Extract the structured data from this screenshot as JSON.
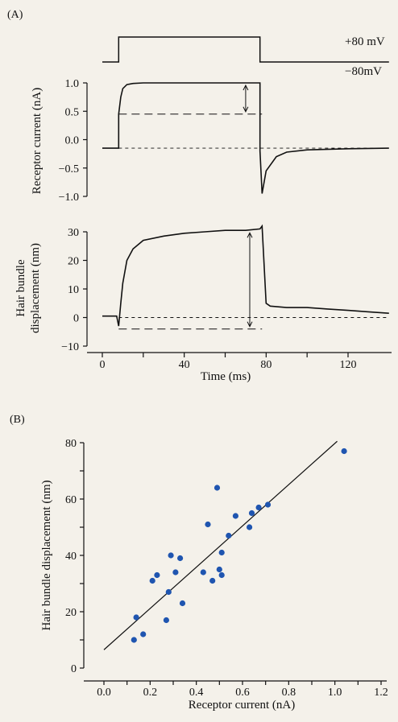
{
  "panel_a_label": "(A)",
  "panel_b_label": "(B)",
  "chart_data": [
    {
      "type": "line",
      "panel": "A-voltage",
      "series": [
        {
          "values_ms": [
            0,
            8,
            8,
            77,
            77,
            140
          ],
          "values_mV": [
            -80,
            -80,
            80,
            80,
            -80,
            -80
          ]
        }
      ],
      "annotations": [
        "+80 mV",
        "−80mV"
      ]
    },
    {
      "type": "line",
      "panel": "A-current",
      "ylabel": "Receptor current (nA)",
      "yticks": [
        "1.0",
        "0.5",
        "0.0",
        "−0.5",
        "−1.0"
      ],
      "ytick_values": [
        1.0,
        0.5,
        0.0,
        -0.5,
        -1.0
      ],
      "ylim": [
        -1.1,
        1.1
      ],
      "series": [
        {
          "x": [
            0,
            8,
            8,
            9,
            10,
            12,
            15,
            20,
            30,
            50,
            77,
            77,
            78,
            80,
            85,
            90,
            100,
            120,
            140
          ],
          "y": [
            -0.15,
            -0.15,
            0.45,
            0.75,
            0.9,
            0.97,
            0.99,
            1.0,
            1.0,
            1.0,
            1.0,
            -0.2,
            -0.95,
            -0.55,
            -0.3,
            -0.22,
            -0.18,
            -0.16,
            -0.15
          ]
        }
      ],
      "dashed_lines": [
        {
          "y": 0.45,
          "x": [
            8,
            78
          ]
        },
        {
          "y": -0.15,
          "x": [
            8,
            140
          ]
        }
      ]
    },
    {
      "type": "line",
      "panel": "A-displacement",
      "ylabel": "Hair bundle displacement (nm)",
      "xlabel": "Time (ms)",
      "yticks": [
        "30",
        "20",
        "10",
        "0",
        "−10"
      ],
      "ytick_values": [
        30,
        20,
        10,
        0,
        -10
      ],
      "xticks": [
        "0",
        "40",
        "80",
        "120"
      ],
      "xtick_values": [
        0,
        40,
        80,
        120
      ],
      "xlim": [
        -8,
        140
      ],
      "ylim": [
        -11,
        32
      ],
      "series": [
        {
          "x": [
            0,
            7,
            8,
            9,
            10,
            12,
            15,
            20,
            30,
            40,
            50,
            60,
            70,
            77,
            78,
            80,
            82,
            90,
            100,
            110,
            120,
            130,
            140
          ],
          "y": [
            0.5,
            0.5,
            -3,
            5,
            12,
            20,
            24,
            27,
            28.5,
            29.5,
            30,
            30.5,
            30.5,
            31,
            32,
            5,
            4,
            3.5,
            3.5,
            3,
            2.5,
            2,
            1.5
          ]
        }
      ],
      "dashed_lines": [
        {
          "y": 0,
          "x": [
            8,
            140
          ]
        },
        {
          "y": -4,
          "x": [
            8,
            78
          ]
        }
      ]
    },
    {
      "type": "scatter",
      "panel": "B",
      "xlabel": "Receptor current (nA)",
      "ylabel": "Hair bundle displacement (nm)",
      "xlim": [
        -0.05,
        1.2
      ],
      "ylim": [
        -2,
        82
      ],
      "xticks": [
        "0.0",
        "0.2",
        "0.4",
        "0.6",
        "0.8",
        "1.0",
        "1.2"
      ],
      "xtick_values": [
        0.0,
        0.2,
        0.4,
        0.6,
        0.8,
        1.0,
        1.2
      ],
      "yticks": [
        "0",
        "20",
        "40",
        "60",
        "80"
      ],
      "ytick_values": [
        0,
        20,
        40,
        60,
        80
      ],
      "point_color": "#1f55b0",
      "points": [
        [
          0.13,
          10
        ],
        [
          0.14,
          18
        ],
        [
          0.17,
          12
        ],
        [
          0.21,
          31
        ],
        [
          0.23,
          33
        ],
        [
          0.27,
          17
        ],
        [
          0.28,
          27
        ],
        [
          0.29,
          40
        ],
        [
          0.31,
          34
        ],
        [
          0.33,
          39
        ],
        [
          0.34,
          23
        ],
        [
          0.43,
          34
        ],
        [
          0.45,
          51
        ],
        [
          0.47,
          31
        ],
        [
          0.49,
          64
        ],
        [
          0.5,
          35
        ],
        [
          0.51,
          33
        ],
        [
          0.51,
          41
        ],
        [
          0.54,
          47
        ],
        [
          0.57,
          54
        ],
        [
          0.63,
          50
        ],
        [
          0.64,
          55
        ],
        [
          0.67,
          57
        ],
        [
          0.71,
          58
        ],
        [
          1.04,
          77
        ]
      ],
      "fit_line": {
        "x": [
          0.0,
          1.01
        ],
        "y": [
          6.5,
          80.5
        ]
      }
    }
  ]
}
